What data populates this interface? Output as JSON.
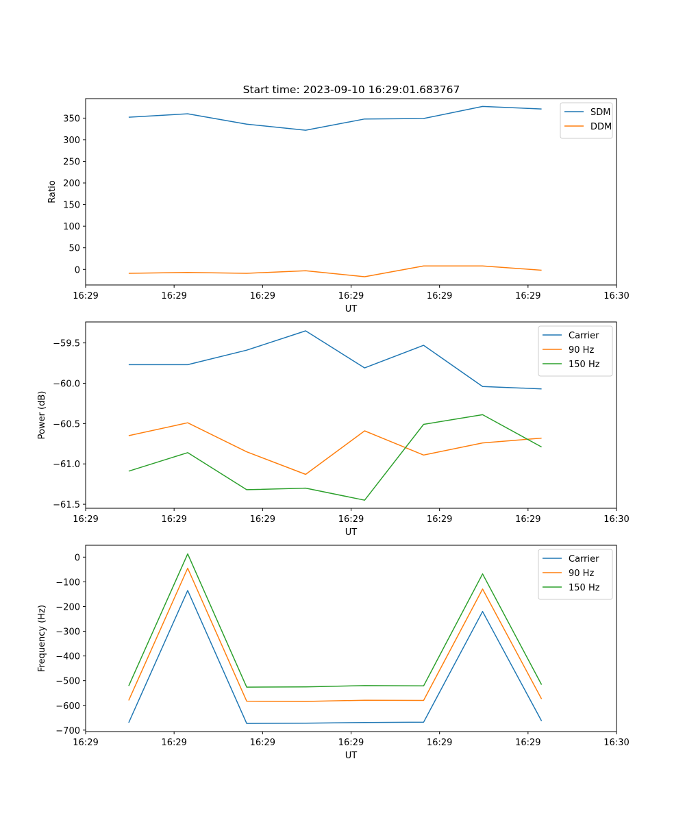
{
  "figure_title": "Start time: 2023-09-10 16:29:01.683767",
  "chart_data": [
    {
      "type": "line",
      "title": "Start time: 2023-09-10 16:29:01.683767",
      "xlabel": "UT",
      "ylabel": "Ratio",
      "x_index": [
        0,
        1,
        2,
        3,
        4,
        5,
        6,
        7
      ],
      "xlim": [
        -0.73,
        8.27
      ],
      "xticks": [
        -0.73,
        0.77,
        2.27,
        3.77,
        5.27,
        6.77,
        8.27
      ],
      "xtick_labels": [
        "16:29",
        "16:29",
        "16:29",
        "16:29",
        "16:29",
        "16:29",
        "16:30"
      ],
      "ylim": [
        -36,
        395
      ],
      "yticks": [
        0,
        50,
        100,
        150,
        200,
        250,
        300,
        350
      ],
      "ytick_labels": [
        "0",
        "50",
        "100",
        "150",
        "200",
        "250",
        "300",
        "350"
      ],
      "legend_position": "top-right",
      "series": [
        {
          "name": "SDM",
          "color": "#1f77b4",
          "values": [
            352,
            360,
            336,
            322,
            348,
            349,
            377,
            371
          ]
        },
        {
          "name": "DDM",
          "color": "#ff7f0e",
          "values": [
            -9,
            -7,
            -9,
            -3,
            -17,
            8,
            8,
            -2
          ]
        }
      ]
    },
    {
      "type": "line",
      "title": "",
      "xlabel": "UT",
      "ylabel": "Power (dB)",
      "x_index": [
        0,
        1,
        2,
        3,
        4,
        5,
        6,
        7
      ],
      "xlim": [
        -0.73,
        8.27
      ],
      "xticks": [
        -0.73,
        0.77,
        2.27,
        3.77,
        5.27,
        6.77,
        8.27
      ],
      "xtick_labels": [
        "16:29",
        "16:29",
        "16:29",
        "16:29",
        "16:29",
        "16:29",
        "16:30"
      ],
      "ylim": [
        -61.55,
        -59.24
      ],
      "yticks": [
        -59.5,
        -60.0,
        -60.5,
        -61.0,
        -61.5
      ],
      "ytick_labels": [
        "−59.5",
        "−60.0",
        "−60.5",
        "−61.0",
        "−61.5"
      ],
      "legend_position": "top-right",
      "series": [
        {
          "name": "Carrier",
          "color": "#1f77b4",
          "values": [
            -59.77,
            -59.77,
            -59.59,
            -59.35,
            -59.81,
            -59.53,
            -60.04,
            -60.07
          ]
        },
        {
          "name": "90 Hz",
          "color": "#ff7f0e",
          "values": [
            -60.65,
            -60.49,
            -60.85,
            -61.13,
            -60.59,
            -60.89,
            -60.74,
            -60.68
          ]
        },
        {
          "name": "150 Hz",
          "color": "#2ca02c",
          "values": [
            -61.09,
            -60.86,
            -61.32,
            -61.3,
            -61.45,
            -60.51,
            -60.39,
            -60.79
          ]
        }
      ]
    },
    {
      "type": "line",
      "title": "",
      "xlabel": "UT",
      "ylabel": "Frequency (Hz)",
      "x_index": [
        0,
        1,
        2,
        3,
        4,
        5,
        6,
        7
      ],
      "xlim": [
        -0.73,
        8.27
      ],
      "xticks": [
        -0.73,
        0.77,
        2.27,
        3.77,
        5.27,
        6.77,
        8.27
      ],
      "xtick_labels": [
        "16:29",
        "16:29",
        "16:29",
        "16:29",
        "16:29",
        "16:29",
        "16:30"
      ],
      "ylim": [
        -706,
        48
      ],
      "yticks": [
        0,
        -100,
        -200,
        -300,
        -400,
        -500,
        -600,
        -700
      ],
      "ytick_labels": [
        "0",
        "−100",
        "−200",
        "−300",
        "−400",
        "−500",
        "−600",
        "−700"
      ],
      "legend_position": "top-right",
      "series": [
        {
          "name": "Carrier",
          "color": "#1f77b4",
          "values": [
            -670,
            -135,
            -673,
            -672,
            -669,
            -668,
            -220,
            -663
          ]
        },
        {
          "name": "90 Hz",
          "color": "#ff7f0e",
          "values": [
            -580,
            -45,
            -583,
            -584,
            -579,
            -580,
            -129,
            -574
          ]
        },
        {
          "name": "150 Hz",
          "color": "#2ca02c",
          "values": [
            -521,
            13,
            -526,
            -525,
            -520,
            -521,
            -68,
            -516
          ]
        }
      ]
    }
  ]
}
